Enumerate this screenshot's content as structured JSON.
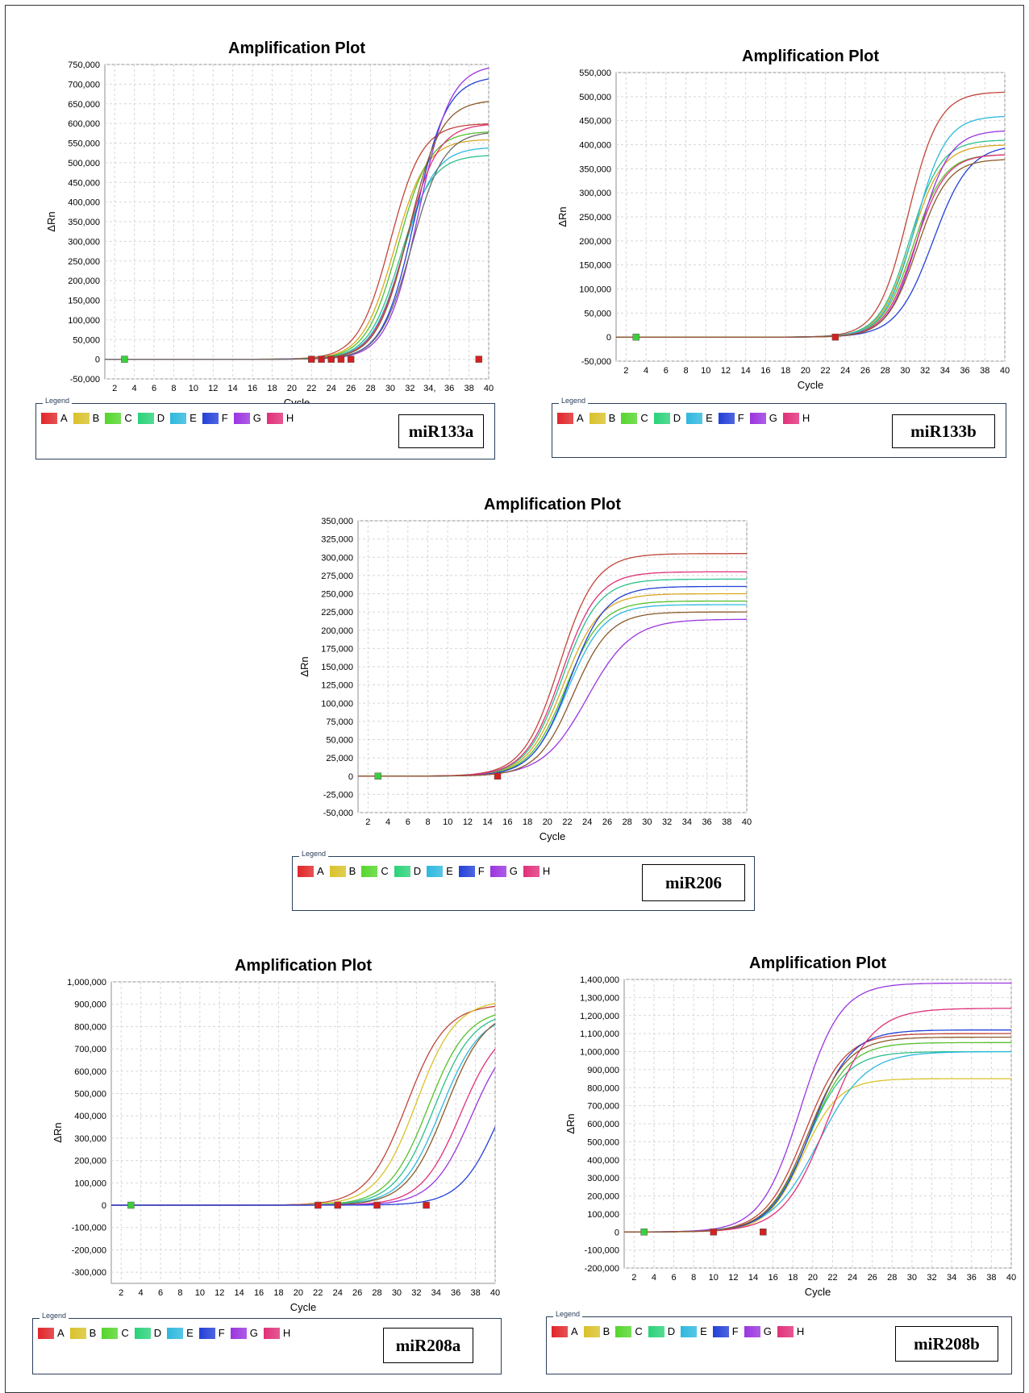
{
  "legend": {
    "title": "Legend",
    "items": [
      {
        "label": "A",
        "color": "#e0262a"
      },
      {
        "label": "B",
        "color": "#d9c22a"
      },
      {
        "label": "C",
        "color": "#55d62c"
      },
      {
        "label": "D",
        "color": "#2bd27a"
      },
      {
        "label": "E",
        "color": "#2eb8de"
      },
      {
        "label": "F",
        "color": "#2340d8"
      },
      {
        "label": "G",
        "color": "#9a35e0"
      },
      {
        "label": "H",
        "color": "#e03079"
      }
    ]
  },
  "chart_data": [
    {
      "type": "line",
      "title": "Amplification Plot",
      "gene": "miR133a",
      "xlabel": "Cycle",
      "ylabel": "ΔRn",
      "xlim": [
        1,
        40
      ],
      "ylim": [
        -50000,
        750000
      ],
      "y_ticks": [
        -50000,
        0,
        50000,
        100000,
        150000,
        200000,
        250000,
        300000,
        350000,
        400000,
        450000,
        500000,
        550000,
        600000,
        650000,
        700000,
        750000
      ],
      "y_tick_labels": [
        "-50,000",
        "0",
        "50,000",
        "100,000",
        "150,000",
        "200,000",
        "250,000",
        "300,000",
        "350,000",
        "400,000",
        "450,000",
        "500,000",
        "550,000",
        "600,000",
        "650,000",
        "700,000",
        "750,000"
      ],
      "x_ticks": [
        2,
        4,
        6,
        8,
        10,
        12,
        14,
        16,
        18,
        20,
        22,
        24,
        26,
        28,
        30,
        32,
        34,
        36,
        38,
        40
      ],
      "x_tick_labels": [
        "2",
        "4",
        "6",
        "8",
        "10",
        "12",
        "14",
        "16",
        "18",
        "20",
        "22",
        "24",
        "26",
        "28",
        "30",
        "32",
        "34,",
        "36",
        "38",
        "40"
      ],
      "grid": true,
      "series": [
        {
          "color": "#c0453a",
          "ct": 30.0,
          "k": 0.62,
          "plateau": 600000
        },
        {
          "color": "#d9a820",
          "ct": 30.4,
          "k": 0.62,
          "plateau": 560000
        },
        {
          "color": "#55c02c",
          "ct": 30.8,
          "k": 0.62,
          "plateau": 580000
        },
        {
          "color": "#2bc08a",
          "ct": 31.0,
          "k": 0.62,
          "plateau": 520000
        },
        {
          "color": "#2eb8de",
          "ct": 31.3,
          "k": 0.62,
          "plateau": 540000
        },
        {
          "color": "#2340d8",
          "ct": 32.5,
          "k": 0.62,
          "plateau": 720000
        },
        {
          "color": "#9a35e0",
          "ct": 32.9,
          "k": 0.62,
          "plateau": 750000
        },
        {
          "color": "#e03079",
          "ct": 31.6,
          "k": 0.62,
          "plateau": 600000
        },
        {
          "color": "#8a5a2a",
          "ct": 31.9,
          "k": 0.62,
          "plateau": 660000
        },
        {
          "color": "#6a6a6a",
          "ct": 32.2,
          "k": 0.62,
          "plateau": 580000
        }
      ]
    },
    {
      "type": "line",
      "title": "Amplification Plot",
      "gene": "miR133b",
      "xlabel": "Cycle",
      "ylabel": "ΔRn",
      "xlim": [
        1,
        40
      ],
      "ylim": [
        -50000,
        550000
      ],
      "y_ticks": [
        -50000,
        0,
        50000,
        100000,
        150000,
        200000,
        250000,
        300000,
        350000,
        400000,
        450000,
        500000,
        550000
      ],
      "y_tick_labels": [
        "-50,000",
        "0",
        "50,000",
        "100,000",
        "150,000",
        "200,000",
        "250,000",
        "300,000",
        "350,000",
        "400,000",
        "450,000",
        "500,000",
        "550,000"
      ],
      "x_ticks": [
        2,
        4,
        6,
        8,
        10,
        12,
        14,
        16,
        18,
        20,
        22,
        24,
        26,
        28,
        30,
        32,
        34,
        36,
        38,
        40
      ],
      "x_tick_labels": [
        "2",
        "4",
        "6",
        "8",
        "10",
        "12",
        "14",
        "16",
        "18",
        "20",
        "22",
        "24",
        "26",
        "28",
        "30",
        "32",
        "34",
        "36",
        "38",
        "40"
      ],
      "grid": true,
      "series": [
        {
          "color": "#c0453a",
          "ct": 30.3,
          "k": 0.65,
          "plateau": 510000
        },
        {
          "color": "#d9a820",
          "ct": 30.6,
          "k": 0.65,
          "plateau": 400000
        },
        {
          "color": "#55c02c",
          "ct": 30.8,
          "k": 0.65,
          "plateau": 380000
        },
        {
          "color": "#2bc08a",
          "ct": 30.5,
          "k": 0.65,
          "plateau": 410000
        },
        {
          "color": "#2eb8de",
          "ct": 31.0,
          "k": 0.65,
          "plateau": 460000
        },
        {
          "color": "#2340d8",
          "ct": 32.8,
          "k": 0.55,
          "plateau": 400000
        },
        {
          "color": "#9a35e0",
          "ct": 31.4,
          "k": 0.65,
          "plateau": 430000
        },
        {
          "color": "#e03079",
          "ct": 31.0,
          "k": 0.65,
          "plateau": 380000
        },
        {
          "color": "#8a5a2a",
          "ct": 31.2,
          "k": 0.65,
          "plateau": 370000
        }
      ]
    },
    {
      "type": "line",
      "title": "Amplification Plot",
      "gene": "miR206",
      "xlabel": "Cycle",
      "ylabel": "ΔRn",
      "xlim": [
        1,
        40
      ],
      "ylim": [
        -50000,
        350000
      ],
      "y_ticks": [
        -50000,
        -25000,
        0,
        25000,
        50000,
        75000,
        100000,
        125000,
        150000,
        175000,
        200000,
        225000,
        250000,
        275000,
        300000,
        325000,
        350000
      ],
      "y_tick_labels": [
        "-50,000",
        "-25,000",
        "0",
        "25,000",
        "50,000",
        "75,000",
        "100,000",
        "125,000",
        "150,000",
        "175,000",
        "200,000",
        "225,000",
        "250,000",
        "275,000",
        "300,000",
        "325,000",
        "350,000"
      ],
      "x_ticks": [
        2,
        4,
        6,
        8,
        10,
        12,
        14,
        16,
        18,
        20,
        22,
        24,
        26,
        28,
        30,
        32,
        34,
        36,
        38,
        40
      ],
      "x_tick_labels": [
        "2",
        "4",
        "6",
        "8",
        "10",
        "12",
        "14",
        "16",
        "18",
        "20",
        "22",
        "24",
        "26",
        "28",
        "30",
        "32",
        "34",
        "36",
        "38",
        "40"
      ],
      "grid": true,
      "series": [
        {
          "color": "#c0453a",
          "ct": 21.2,
          "k": 0.55,
          "plateau": 305000
        },
        {
          "color": "#d9a820",
          "ct": 21.6,
          "k": 0.55,
          "plateau": 250000
        },
        {
          "color": "#55c02c",
          "ct": 21.8,
          "k": 0.55,
          "plateau": 240000
        },
        {
          "color": "#2bc08a",
          "ct": 21.5,
          "k": 0.55,
          "plateau": 270000
        },
        {
          "color": "#2eb8de",
          "ct": 22.0,
          "k": 0.55,
          "plateau": 235000
        },
        {
          "color": "#2340d8",
          "ct": 22.2,
          "k": 0.55,
          "plateau": 260000
        },
        {
          "color": "#9a35e0",
          "ct": 24.0,
          "k": 0.45,
          "plateau": 215000
        },
        {
          "color": "#e03079",
          "ct": 21.4,
          "k": 0.55,
          "plateau": 280000
        },
        {
          "color": "#8a5a2a",
          "ct": 22.6,
          "k": 0.55,
          "plateau": 225000
        }
      ]
    },
    {
      "type": "line",
      "title": "Amplification Plot",
      "gene": "miR208a",
      "xlabel": "Cycle",
      "ylabel": "ΔRn",
      "xlim": [
        1,
        40
      ],
      "ylim": [
        -350000,
        1000000
      ],
      "y_ticks": [
        -300000,
        -200000,
        -100000,
        0,
        100000,
        200000,
        300000,
        400000,
        500000,
        600000,
        700000,
        800000,
        900000,
        1000000
      ],
      "y_tick_labels": [
        "-300,000",
        "-200,000",
        "-100,000",
        "0",
        "100,000",
        "200,000",
        "300,000",
        "400,000",
        "500,000",
        "600,000",
        "700,000",
        "800,000",
        "900,000",
        "1,000,000"
      ],
      "x_ticks": [
        2,
        4,
        6,
        8,
        10,
        12,
        14,
        16,
        18,
        20,
        22,
        24,
        26,
        28,
        30,
        32,
        34,
        36,
        38,
        40
      ],
      "x_tick_labels": [
        "2",
        "4",
        "6",
        "8",
        "10",
        "12",
        "14",
        "16",
        "18",
        "20",
        "22",
        "24",
        "26",
        "28",
        "30",
        "32",
        "34",
        "36",
        "38",
        "40"
      ],
      "grid": true,
      "series": [
        {
          "color": "#c0453a",
          "ct": 31.0,
          "k": 0.5,
          "plateau": 900000
        },
        {
          "color": "#d9c22a",
          "ct": 32.0,
          "k": 0.5,
          "plateau": 920000
        },
        {
          "color": "#55c02c",
          "ct": 33.2,
          "k": 0.5,
          "plateau": 880000
        },
        {
          "color": "#2bc08a",
          "ct": 33.8,
          "k": 0.5,
          "plateau": 870000
        },
        {
          "color": "#2eb8de",
          "ct": 34.5,
          "k": 0.5,
          "plateau": 860000
        },
        {
          "color": "#8a5a2a",
          "ct": 35.0,
          "k": 0.5,
          "plateau": 880000
        },
        {
          "color": "#e03079",
          "ct": 36.5,
          "k": 0.5,
          "plateau": 820000
        },
        {
          "color": "#9a35e0",
          "ct": 37.6,
          "k": 0.5,
          "plateau": 800000
        },
        {
          "color": "#2340d8",
          "ct": 40.5,
          "k": 0.5,
          "plateau": 800000
        }
      ]
    },
    {
      "type": "line",
      "title": "Amplification Plot",
      "gene": "miR208b",
      "xlabel": "Cycle",
      "ylabel": "ΔRn",
      "xlim": [
        1,
        40
      ],
      "ylim": [
        -200000,
        1400000
      ],
      "y_ticks": [
        -200000,
        -100000,
        0,
        100000,
        200000,
        300000,
        400000,
        500000,
        600000,
        700000,
        800000,
        900000,
        1000000,
        1100000,
        1200000,
        1300000,
        1400000
      ],
      "y_tick_labels": [
        "-200,000",
        "-100,000",
        "0",
        "100,000",
        "200,000",
        "300,000",
        "400,000",
        "500,000",
        "600,000",
        "700,000",
        "800,000",
        "900,000",
        "1,000,000",
        "1,100,000",
        "1,200,000",
        "1,300,000",
        "1,400,000"
      ],
      "x_ticks": [
        2,
        4,
        6,
        8,
        10,
        12,
        14,
        16,
        18,
        20,
        22,
        24,
        26,
        28,
        30,
        32,
        34,
        36,
        38,
        40
      ],
      "x_tick_labels": [
        "2",
        "4",
        "6",
        "8",
        "10",
        "12",
        "14",
        "16",
        "18",
        "20",
        "22",
        "24",
        "26",
        "28",
        "30",
        "32",
        "34",
        "36",
        "38",
        "40"
      ],
      "grid": true,
      "series": [
        {
          "color": "#c0453a",
          "ct": 19.2,
          "k": 0.5,
          "plateau": 1100000
        },
        {
          "color": "#d9c22a",
          "ct": 19.0,
          "k": 0.55,
          "plateau": 850000
        },
        {
          "color": "#55c02c",
          "ct": 19.6,
          "k": 0.5,
          "plateau": 1050000
        },
        {
          "color": "#2bc08a",
          "ct": 19.4,
          "k": 0.5,
          "plateau": 1000000
        },
        {
          "color": "#2eb8de",
          "ct": 20.6,
          "k": 0.42,
          "plateau": 1000000
        },
        {
          "color": "#2340d8",
          "ct": 19.8,
          "k": 0.5,
          "plateau": 1120000
        },
        {
          "color": "#9a35e0",
          "ct": 18.8,
          "k": 0.5,
          "plateau": 1380000
        },
        {
          "color": "#e03079",
          "ct": 21.5,
          "k": 0.45,
          "plateau": 1240000
        },
        {
          "color": "#8a5a2a",
          "ct": 19.5,
          "k": 0.5,
          "plateau": 1080000
        }
      ]
    }
  ]
}
